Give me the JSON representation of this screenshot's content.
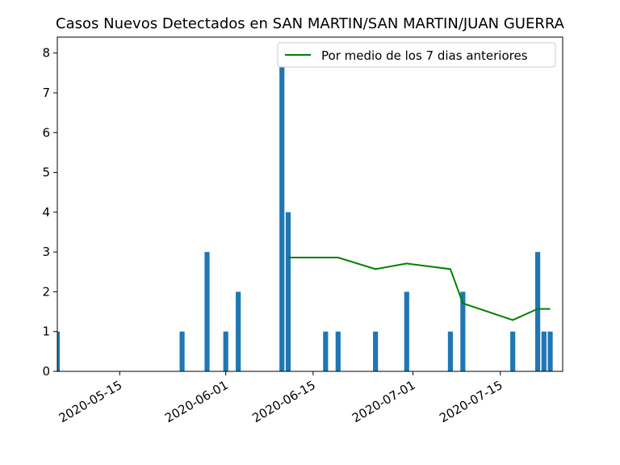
{
  "chart_data": {
    "type": "bar",
    "title": "Casos Nuevos Detectados en SAN MARTIN/SAN MARTIN/JUAN GUERRA",
    "xlabel": "",
    "ylabel": "",
    "xlim": [
      "2020-05-05",
      "2020-07-25"
    ],
    "ylim": [
      0,
      8.4
    ],
    "y_ticks": [
      0,
      1,
      2,
      3,
      4,
      5,
      6,
      7,
      8
    ],
    "x_ticks": [
      "2020-05-15",
      "2020-06-01",
      "2020-06-15",
      "2020-07-01",
      "2020-07-15"
    ],
    "grid": false,
    "legend_position": "top-right",
    "colors": {
      "bars": "#1f77b4",
      "line": "#008000"
    },
    "series": [
      {
        "type": "bar",
        "x": [
          "2020-05-05",
          "2020-05-25",
          "2020-05-29",
          "2020-06-01",
          "2020-06-03",
          "2020-06-10",
          "2020-06-11",
          "2020-06-17",
          "2020-06-19",
          "2020-06-25",
          "2020-06-30",
          "2020-07-07",
          "2020-07-09",
          "2020-07-17",
          "2020-07-21",
          "2020-07-22",
          "2020-07-23"
        ],
        "values": [
          1,
          1,
          3,
          1,
          2,
          8,
          4,
          1,
          1,
          1,
          2,
          1,
          2,
          1,
          3,
          1,
          1
        ]
      },
      {
        "type": "line",
        "name": "Por medio de los 7 dias anteriores",
        "x": [
          "2020-06-11",
          "2020-06-19",
          "2020-06-25",
          "2020-06-30",
          "2020-07-07",
          "2020-07-09",
          "2020-07-17",
          "2020-07-21",
          "2020-07-23"
        ],
        "values": [
          2.86,
          2.86,
          2.57,
          2.71,
          2.57,
          1.71,
          1.29,
          1.57,
          1.57
        ]
      }
    ]
  }
}
